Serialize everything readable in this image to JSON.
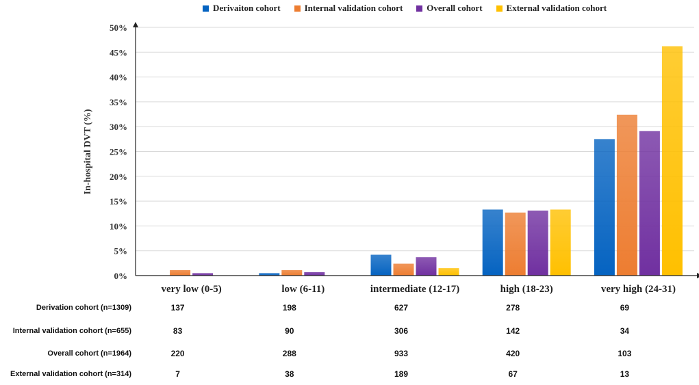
{
  "chart_data": {
    "type": "bar",
    "title": "",
    "xlabel": "",
    "ylabel": "In-hospital DVT (%)",
    "ylim": [
      0,
      50
    ],
    "yticks": [
      "0%",
      "5%",
      "10%",
      "15%",
      "20%",
      "25%",
      "30%",
      "35%",
      "40%",
      "45%",
      "50%"
    ],
    "categories": [
      "very low (0-5)",
      "low (6-11)",
      "intermediate (12-17)",
      "high (18-23)",
      "very high (24-31)"
    ],
    "series": [
      {
        "name": "Derivaiton cohort",
        "color": "#0563C1",
        "values": [
          0,
          0.5,
          4.2,
          13.3,
          27.5
        ]
      },
      {
        "name": "Internal validation cohort",
        "color": "#ED7D31",
        "values": [
          1.1,
          1.1,
          2.4,
          12.7,
          32.4
        ]
      },
      {
        "name": "Overall cohort",
        "color": "#7030A0",
        "values": [
          0.5,
          0.7,
          3.7,
          13.1,
          29.1
        ]
      },
      {
        "name": "External validation cohort",
        "color": "#FFC000",
        "values": [
          0,
          0,
          1.5,
          13.3,
          46.2
        ]
      }
    ],
    "legend_position": "top",
    "table": {
      "rows": [
        {
          "label": "Derivation cohort (n=1309)",
          "values": [
            "137",
            "198",
            "627",
            "278",
            "69"
          ]
        },
        {
          "label": "Internal validation cohort (n=655)",
          "values": [
            "83",
            "90",
            "306",
            "142",
            "34"
          ]
        },
        {
          "label": "Overall cohort (n=1964)",
          "values": [
            "220",
            "288",
            "933",
            "420",
            "103"
          ]
        },
        {
          "label": "External validation cohort (n=314)",
          "values": [
            "7",
            "38",
            "189",
            "67",
            "13"
          ]
        }
      ]
    }
  }
}
